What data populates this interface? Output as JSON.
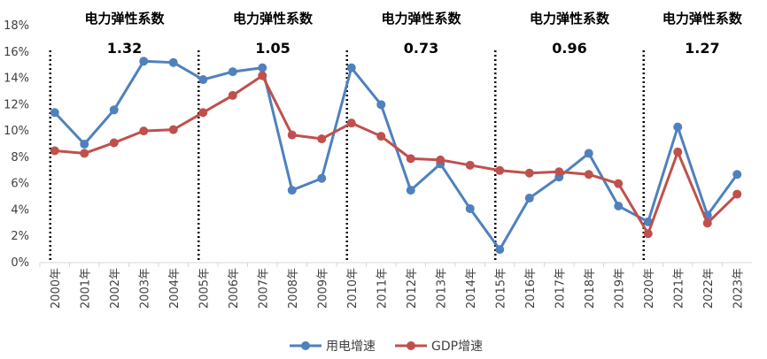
{
  "chart_data": {
    "type": "line",
    "categories": [
      "2000年",
      "2001年",
      "2002年",
      "2003年",
      "2004年",
      "2005年",
      "2006年",
      "2007年",
      "2008年",
      "2009年",
      "2010年",
      "2011年",
      "2012年",
      "2013年",
      "2014年",
      "2015年",
      "2016年",
      "2017年",
      "2018年",
      "2019年",
      "2020年",
      "2021年",
      "2022年",
      "2023年"
    ],
    "ylim": [
      0,
      18
    ],
    "yticks": [
      "0%",
      "2%",
      "4%",
      "6%",
      "8%",
      "10%",
      "12%",
      "14%",
      "16%",
      "18%"
    ],
    "series": [
      {
        "name": "用电增速",
        "color": "#4F81BD",
        "values": [
          11.4,
          9.0,
          11.6,
          15.3,
          15.2,
          13.9,
          14.5,
          14.8,
          5.5,
          6.4,
          14.8,
          12.0,
          5.5,
          7.5,
          4.1,
          1.0,
          4.9,
          6.5,
          8.3,
          4.3,
          3.1,
          10.3,
          3.6,
          6.7
        ]
      },
      {
        "name": "GDP增速",
        "color": "#C0504D",
        "values": [
          8.5,
          8.3,
          9.1,
          10.0,
          10.1,
          11.4,
          12.7,
          14.2,
          9.7,
          9.4,
          10.6,
          9.6,
          7.9,
          7.8,
          7.4,
          7.0,
          6.8,
          6.9,
          6.7,
          6.0,
          2.2,
          8.4,
          3.0,
          5.2
        ]
      }
    ],
    "period_dividers_after_year": [
      "2000年",
      "2005年",
      "2010年",
      "2015年",
      "2020年"
    ],
    "annotations": [
      {
        "title": "电力弹性系数",
        "value": "1.32"
      },
      {
        "title": "电力弹性系数",
        "value": "1.05"
      },
      {
        "title": "电力弹性系数",
        "value": "0.73"
      },
      {
        "title": "电力弹性系数",
        "value": "0.96"
      },
      {
        "title": "电力弹性系数",
        "value": "1.27"
      }
    ],
    "legend": [
      "用电增速",
      "GDP增速"
    ],
    "legend_position": "bottom"
  }
}
